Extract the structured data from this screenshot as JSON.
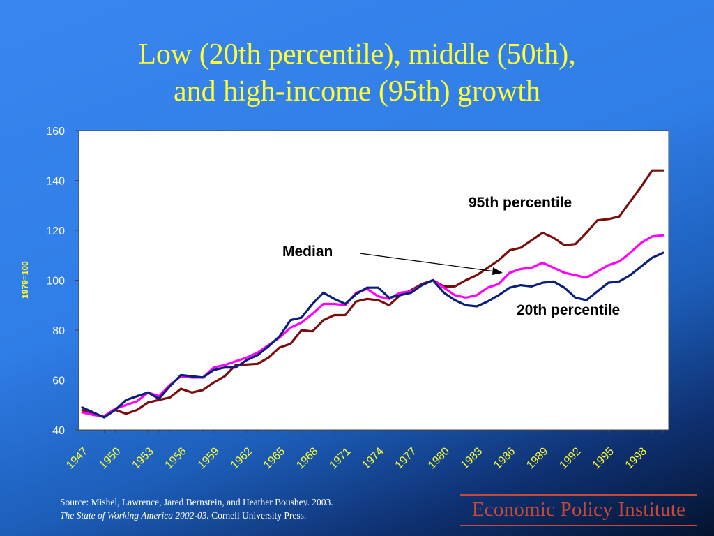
{
  "slide": {
    "title_line1": "Low (20th percentile), middle (50th),",
    "title_line2": "and high-income (95th) growth",
    "source_line1": "Source:  Mishel, Lawrence, Jared Bernstein, and Heather Boushey. 2003.",
    "source_book": "The State of Working America 2002-03.",
    "source_publisher": " Cornell University Press.",
    "logo_text": "Economic Policy Institute"
  },
  "chart_data": {
    "type": "line",
    "ylabel": "1979=100",
    "ylim": [
      40,
      160
    ],
    "yticks": [
      40,
      60,
      80,
      100,
      120,
      140,
      160
    ],
    "xlim": [
      1947,
      2000
    ],
    "xticks": [
      1947,
      1950,
      1953,
      1956,
      1959,
      1962,
      1965,
      1968,
      1971,
      1974,
      1977,
      1980,
      1983,
      1986,
      1989,
      1992,
      1995,
      1998
    ],
    "grid": false,
    "x": [
      1947,
      1948,
      1949,
      1950,
      1951,
      1952,
      1953,
      1954,
      1955,
      1956,
      1957,
      1958,
      1959,
      1960,
      1961,
      1962,
      1963,
      1964,
      1965,
      1966,
      1967,
      1968,
      1969,
      1970,
      1971,
      1972,
      1973,
      1974,
      1975,
      1976,
      1977,
      1978,
      1979,
      1980,
      1981,
      1982,
      1983,
      1984,
      1985,
      1986,
      1987,
      1988,
      1989,
      1990,
      1991,
      1992,
      1993,
      1994,
      1995,
      1996,
      1997,
      1998,
      1999,
      2000
    ],
    "series": [
      {
        "name": "95th percentile",
        "color": "#7a0e0e",
        "values": [
          48,
          46,
          45.5,
          48,
          46.5,
          48,
          51,
          52,
          53,
          56.5,
          55,
          56,
          59,
          61.5,
          66,
          66.2,
          66.5,
          69,
          73,
          74.5,
          80,
          79.5,
          84,
          86,
          86,
          91.5,
          92.5,
          92,
          90,
          94,
          96,
          98.5,
          100,
          97.5,
          97.5,
          100,
          102,
          105,
          108,
          112,
          113,
          116,
          119,
          117,
          114,
          114.5,
          119,
          124,
          124.5,
          125.5,
          131.5,
          137.5,
          144,
          144
        ]
      },
      {
        "name": "Median",
        "color": "#ff00ff",
        "values": [
          47,
          46,
          45.5,
          48.5,
          50,
          51.5,
          55,
          53.5,
          58,
          61.5,
          61,
          61,
          65,
          66,
          67.5,
          69,
          71,
          74,
          77,
          81,
          83,
          86.5,
          90.5,
          90.5,
          90,
          95,
          96.5,
          93.5,
          92.5,
          95,
          95.5,
          98,
          100,
          97,
          94,
          93,
          94,
          97,
          98.5,
          103,
          104.5,
          105,
          107,
          105,
          103,
          102,
          101,
          103.5,
          106,
          107.5,
          111,
          115,
          117.5,
          118
        ]
      },
      {
        "name": "20th percentile",
        "color": "#0a1f7a",
        "values": [
          49,
          47,
          45,
          48,
          52,
          53.5,
          55,
          52.5,
          57.5,
          62,
          61.5,
          61,
          64,
          65,
          65,
          68,
          70,
          73.5,
          77.5,
          84,
          85,
          90.5,
          95,
          92.5,
          90.5,
          94.5,
          97,
          97,
          93,
          94,
          95,
          98,
          100,
          95,
          92,
          90,
          89.5,
          91.5,
          94,
          97,
          98,
          97.5,
          99,
          99.5,
          97,
          93,
          92,
          95.5,
          99,
          99.5,
          102,
          105.5,
          109,
          111
        ]
      }
    ],
    "annotations": [
      {
        "text": "95th percentile"
      },
      {
        "text": "Median"
      },
      {
        "text": "20th percentile"
      }
    ]
  }
}
